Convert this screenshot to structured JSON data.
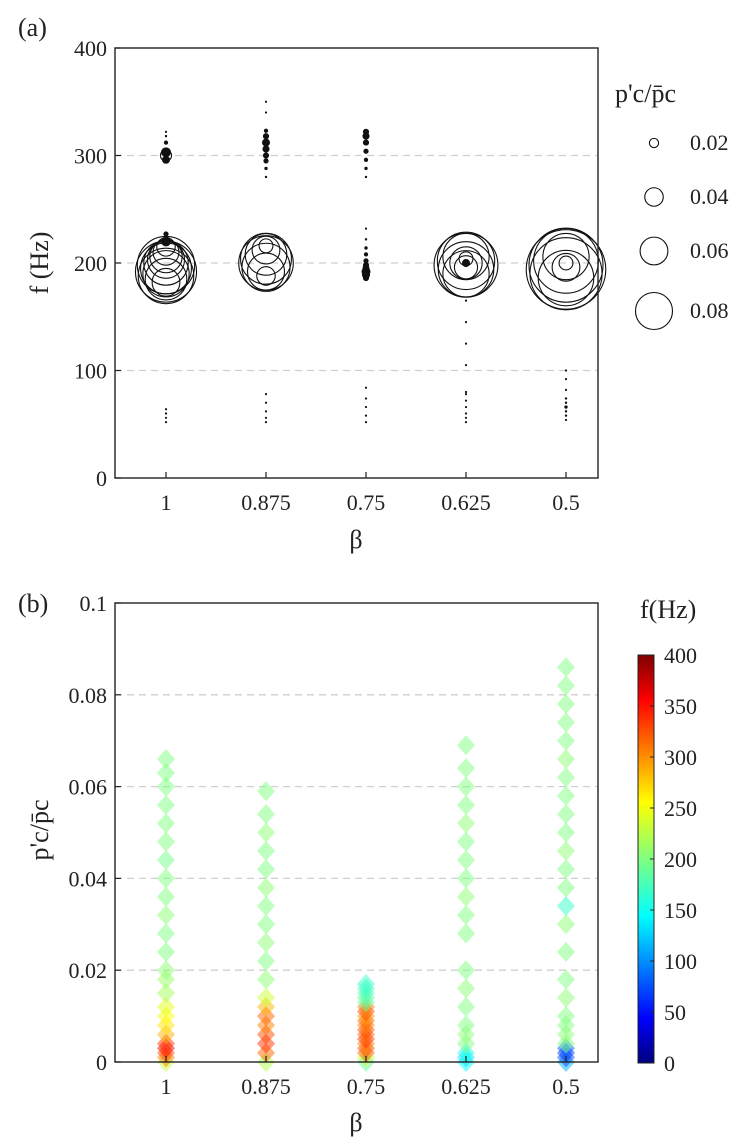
{
  "chart_data": [
    {
      "panel_label": "(a)",
      "type": "scatter",
      "marker": "circle-outline, size proportional to p'c/p̄c",
      "xlabel": "β",
      "ylabel": "f (Hz)",
      "categories": [
        "1",
        "0.875",
        "0.75",
        "0.625",
        "0.5"
      ],
      "ylim": [
        0,
        400
      ],
      "yticks": [
        "0",
        "100",
        "200",
        "300",
        "400"
      ],
      "grid": "horizontal dashed",
      "size_legend": {
        "title": "p'c/p̄c",
        "placement": "right",
        "entries": [
          "0.02",
          "0.04",
          "0.06",
          "0.08"
        ],
        "values": [
          0.02,
          0.04,
          0.06,
          0.08
        ]
      },
      "series": [
        {
          "category": "1",
          "points": [
            {
              "f": 182,
              "amp": 0.03
            },
            {
              "f": 185,
              "amp": 0.045
            },
            {
              "f": 188,
              "amp": 0.06
            },
            {
              "f": 190,
              "amp": 0.05
            },
            {
              "f": 192,
              "amp": 0.066
            },
            {
              "f": 195,
              "amp": 0.055
            },
            {
              "f": 198,
              "amp": 0.062
            },
            {
              "f": 200,
              "amp": 0.048
            },
            {
              "f": 203,
              "amp": 0.04
            },
            {
              "f": 206,
              "amp": 0.035
            },
            {
              "f": 210,
              "amp": 0.028
            },
            {
              "f": 215,
              "amp": 0.02
            },
            {
              "f": 220,
              "amp": 0.01
            },
            {
              "f": 227,
              "amp": 0.005
            },
            {
              "f": 296,
              "amp": 0.008
            },
            {
              "f": 300,
              "amp": 0.012
            },
            {
              "f": 303,
              "amp": 0.01
            },
            {
              "f": 312,
              "amp": 0.004
            },
            {
              "f": 318,
              "amp": 0.002
            },
            {
              "f": 322,
              "amp": 0.001
            },
            {
              "f": 52,
              "amp": 0.001
            },
            {
              "f": 56,
              "amp": 0.001
            },
            {
              "f": 60,
              "amp": 0.001
            },
            {
              "f": 64,
              "amp": 0.001
            }
          ]
        },
        {
          "category": "0.875",
          "points": [
            {
              "f": 192,
              "amp": 0.04
            },
            {
              "f": 196,
              "amp": 0.052
            },
            {
              "f": 200,
              "amp": 0.059
            },
            {
              "f": 204,
              "amp": 0.055
            },
            {
              "f": 208,
              "amp": 0.045
            },
            {
              "f": 212,
              "amp": 0.03
            },
            {
              "f": 216,
              "amp": 0.015
            },
            {
              "f": 188,
              "amp": 0.02
            },
            {
              "f": 280,
              "amp": 0.002
            },
            {
              "f": 288,
              "amp": 0.003
            },
            {
              "f": 295,
              "amp": 0.005
            },
            {
              "f": 300,
              "amp": 0.006
            },
            {
              "f": 306,
              "amp": 0.007
            },
            {
              "f": 312,
              "amp": 0.008
            },
            {
              "f": 318,
              "amp": 0.006
            },
            {
              "f": 323,
              "amp": 0.004
            },
            {
              "f": 340,
              "amp": 0.001
            },
            {
              "f": 350,
              "amp": 0.001
            },
            {
              "f": 52,
              "amp": 0.001
            },
            {
              "f": 56,
              "amp": 0.001
            },
            {
              "f": 62,
              "amp": 0.001
            },
            {
              "f": 70,
              "amp": 0.001
            },
            {
              "f": 78,
              "amp": 0.001
            }
          ]
        },
        {
          "category": "0.75",
          "points": [
            {
              "f": 186,
              "amp": 0.006
            },
            {
              "f": 189,
              "amp": 0.008
            },
            {
              "f": 192,
              "amp": 0.009
            },
            {
              "f": 195,
              "amp": 0.007
            },
            {
              "f": 198,
              "amp": 0.006
            },
            {
              "f": 202,
              "amp": 0.005
            },
            {
              "f": 208,
              "amp": 0.004
            },
            {
              "f": 214,
              "amp": 0.003
            },
            {
              "f": 222,
              "amp": 0.002
            },
            {
              "f": 232,
              "amp": 0.001
            },
            {
              "f": 280,
              "amp": 0.002
            },
            {
              "f": 288,
              "amp": 0.003
            },
            {
              "f": 296,
              "amp": 0.004
            },
            {
              "f": 304,
              "amp": 0.005
            },
            {
              "f": 312,
              "amp": 0.006
            },
            {
              "f": 318,
              "amp": 0.007
            },
            {
              "f": 322,
              "amp": 0.006
            },
            {
              "f": 52,
              "amp": 0.001
            },
            {
              "f": 58,
              "amp": 0.001
            },
            {
              "f": 66,
              "amp": 0.001
            },
            {
              "f": 74,
              "amp": 0.001
            },
            {
              "f": 84,
              "amp": 0.001
            }
          ]
        },
        {
          "category": "0.625",
          "points": [
            {
              "f": 190,
              "amp": 0.05
            },
            {
              "f": 194,
              "amp": 0.06
            },
            {
              "f": 198,
              "amp": 0.069
            },
            {
              "f": 202,
              "amp": 0.062
            },
            {
              "f": 206,
              "amp": 0.05
            },
            {
              "f": 200,
              "amp": 0.035
            },
            {
              "f": 196,
              "amp": 0.025
            },
            {
              "f": 204,
              "amp": 0.015
            },
            {
              "f": 200,
              "amp": 0.008
            },
            {
              "f": 80,
              "amp": 0.001
            },
            {
              "f": 105,
              "amp": 0.001
            },
            {
              "f": 125,
              "amp": 0.001
            },
            {
              "f": 145,
              "amp": 0.001
            },
            {
              "f": 165,
              "amp": 0.001
            },
            {
              "f": 52,
              "amp": 0.001
            },
            {
              "f": 56,
              "amp": 0.001
            },
            {
              "f": 60,
              "amp": 0.001
            },
            {
              "f": 66,
              "amp": 0.001
            },
            {
              "f": 72,
              "amp": 0.001
            },
            {
              "f": 78,
              "amp": 0.001
            }
          ]
        },
        {
          "category": "0.5",
          "points": [
            {
              "f": 186,
              "amp": 0.06
            },
            {
              "f": 190,
              "amp": 0.078
            },
            {
              "f": 194,
              "amp": 0.086
            },
            {
              "f": 198,
              "amp": 0.08
            },
            {
              "f": 202,
              "amp": 0.07
            },
            {
              "f": 206,
              "amp": 0.05
            },
            {
              "f": 196,
              "amp": 0.03
            },
            {
              "f": 200,
              "amp": 0.015
            },
            {
              "f": 54,
              "amp": 0.001
            },
            {
              "f": 58,
              "amp": 0.002
            },
            {
              "f": 62,
              "amp": 0.002
            },
            {
              "f": 66,
              "amp": 0.003
            },
            {
              "f": 70,
              "amp": 0.002
            },
            {
              "f": 74,
              "amp": 0.002
            },
            {
              "f": 82,
              "amp": 0.001
            },
            {
              "f": 92,
              "amp": 0.001
            },
            {
              "f": 100,
              "amp": 0.001
            }
          ]
        }
      ]
    },
    {
      "panel_label": "(b)",
      "type": "scatter",
      "marker": "diamond, translucent, colored by f (Hz)",
      "xlabel": "β",
      "ylabel": "p'c/p̄c",
      "categories": [
        "1",
        "0.875",
        "0.75",
        "0.625",
        "0.5"
      ],
      "ylim": [
        0,
        0.1
      ],
      "yticks": [
        "0",
        "0.02",
        "0.04",
        "0.06",
        "0.08",
        "0.1"
      ],
      "grid": "horizontal dashed",
      "colorbar": {
        "title": "f(Hz)",
        "placement": "right",
        "colormap": "jet",
        "range": [
          0,
          400
        ],
        "ticks": [
          "0",
          "50",
          "100",
          "150",
          "200",
          "250",
          "300",
          "350",
          "400"
        ]
      },
      "series": [
        {
          "category": "1",
          "points": [
            {
              "amp": 0.0,
              "f": 230
            },
            {
              "amp": 0.001,
              "f": 300
            },
            {
              "amp": 0.002,
              "f": 320
            },
            {
              "amp": 0.003,
              "f": 350
            },
            {
              "amp": 0.004,
              "f": 330
            },
            {
              "amp": 0.006,
              "f": 280
            },
            {
              "amp": 0.008,
              "f": 260
            },
            {
              "amp": 0.01,
              "f": 250
            },
            {
              "amp": 0.012,
              "f": 240
            },
            {
              "amp": 0.015,
              "f": 215
            },
            {
              "amp": 0.018,
              "f": 210
            },
            {
              "amp": 0.02,
              "f": 205
            },
            {
              "amp": 0.024,
              "f": 200
            },
            {
              "amp": 0.028,
              "f": 200
            },
            {
              "amp": 0.032,
              "f": 205
            },
            {
              "amp": 0.036,
              "f": 200
            },
            {
              "amp": 0.04,
              "f": 200
            },
            {
              "amp": 0.044,
              "f": 195
            },
            {
              "amp": 0.048,
              "f": 200
            },
            {
              "amp": 0.052,
              "f": 200
            },
            {
              "amp": 0.056,
              "f": 200
            },
            {
              "amp": 0.06,
              "f": 200
            },
            {
              "amp": 0.063,
              "f": 200
            },
            {
              "amp": 0.066,
              "f": 200
            }
          ]
        },
        {
          "category": "0.875",
          "points": [
            {
              "amp": 0.0,
              "f": 220
            },
            {
              "amp": 0.002,
              "f": 310
            },
            {
              "amp": 0.004,
              "f": 330
            },
            {
              "amp": 0.006,
              "f": 320
            },
            {
              "amp": 0.008,
              "f": 300
            },
            {
              "amp": 0.01,
              "f": 310
            },
            {
              "amp": 0.012,
              "f": 280
            },
            {
              "amp": 0.014,
              "f": 230
            },
            {
              "amp": 0.018,
              "f": 205
            },
            {
              "amp": 0.022,
              "f": 200
            },
            {
              "amp": 0.026,
              "f": 205
            },
            {
              "amp": 0.03,
              "f": 200
            },
            {
              "amp": 0.034,
              "f": 200
            },
            {
              "amp": 0.038,
              "f": 205
            },
            {
              "amp": 0.042,
              "f": 200
            },
            {
              "amp": 0.046,
              "f": 200
            },
            {
              "amp": 0.05,
              "f": 205
            },
            {
              "amp": 0.054,
              "f": 200
            },
            {
              "amp": 0.059,
              "f": 200
            }
          ]
        },
        {
          "category": "0.75",
          "points": [
            {
              "amp": 0.0,
              "f": 190
            },
            {
              "amp": 0.001,
              "f": 230
            },
            {
              "amp": 0.002,
              "f": 310
            },
            {
              "amp": 0.003,
              "f": 320
            },
            {
              "amp": 0.004,
              "f": 300
            },
            {
              "amp": 0.005,
              "f": 330
            },
            {
              "amp": 0.006,
              "f": 310
            },
            {
              "amp": 0.007,
              "f": 320
            },
            {
              "amp": 0.008,
              "f": 300
            },
            {
              "amp": 0.009,
              "f": 310
            },
            {
              "amp": 0.01,
              "f": 290
            },
            {
              "amp": 0.011,
              "f": 320
            },
            {
              "amp": 0.012,
              "f": 300
            },
            {
              "amp": 0.013,
              "f": 190
            },
            {
              "amp": 0.014,
              "f": 185
            },
            {
              "amp": 0.015,
              "f": 180
            },
            {
              "amp": 0.016,
              "f": 175
            },
            {
              "amp": 0.017,
              "f": 170
            }
          ]
        },
        {
          "category": "0.625",
          "points": [
            {
              "amp": 0.0,
              "f": 150
            },
            {
              "amp": 0.001,
              "f": 140
            },
            {
              "amp": 0.002,
              "f": 160
            },
            {
              "amp": 0.004,
              "f": 200
            },
            {
              "amp": 0.006,
              "f": 205
            },
            {
              "amp": 0.008,
              "f": 200
            },
            {
              "amp": 0.012,
              "f": 200
            },
            {
              "amp": 0.016,
              "f": 205
            },
            {
              "amp": 0.02,
              "f": 200
            },
            {
              "amp": 0.028,
              "f": 200
            },
            {
              "amp": 0.032,
              "f": 200
            },
            {
              "amp": 0.036,
              "f": 205
            },
            {
              "amp": 0.04,
              "f": 200
            },
            {
              "amp": 0.044,
              "f": 200
            },
            {
              "amp": 0.048,
              "f": 200
            },
            {
              "amp": 0.052,
              "f": 205
            },
            {
              "amp": 0.056,
              "f": 200
            },
            {
              "amp": 0.06,
              "f": 200
            },
            {
              "amp": 0.064,
              "f": 200
            },
            {
              "amp": 0.069,
              "f": 200
            }
          ]
        },
        {
          "category": "0.5",
          "points": [
            {
              "amp": 0.0,
              "f": 120
            },
            {
              "amp": 0.001,
              "f": 80
            },
            {
              "amp": 0.002,
              "f": 70
            },
            {
              "amp": 0.003,
              "f": 90
            },
            {
              "amp": 0.004,
              "f": 200
            },
            {
              "amp": 0.006,
              "f": 205
            },
            {
              "amp": 0.008,
              "f": 200
            },
            {
              "amp": 0.01,
              "f": 200
            },
            {
              "amp": 0.014,
              "f": 205
            },
            {
              "amp": 0.018,
              "f": 200
            },
            {
              "amp": 0.024,
              "f": 200
            },
            {
              "amp": 0.03,
              "f": 205
            },
            {
              "amp": 0.034,
              "f": 170
            },
            {
              "amp": 0.038,
              "f": 200
            },
            {
              "amp": 0.042,
              "f": 200
            },
            {
              "amp": 0.046,
              "f": 205
            },
            {
              "amp": 0.05,
              "f": 200
            },
            {
              "amp": 0.054,
              "f": 200
            },
            {
              "amp": 0.058,
              "f": 200
            },
            {
              "amp": 0.062,
              "f": 200
            },
            {
              "amp": 0.066,
              "f": 205
            },
            {
              "amp": 0.07,
              "f": 200
            },
            {
              "amp": 0.074,
              "f": 200
            },
            {
              "amp": 0.078,
              "f": 200
            },
            {
              "amp": 0.082,
              "f": 200
            },
            {
              "amp": 0.086,
              "f": 200
            }
          ]
        }
      ]
    }
  ]
}
